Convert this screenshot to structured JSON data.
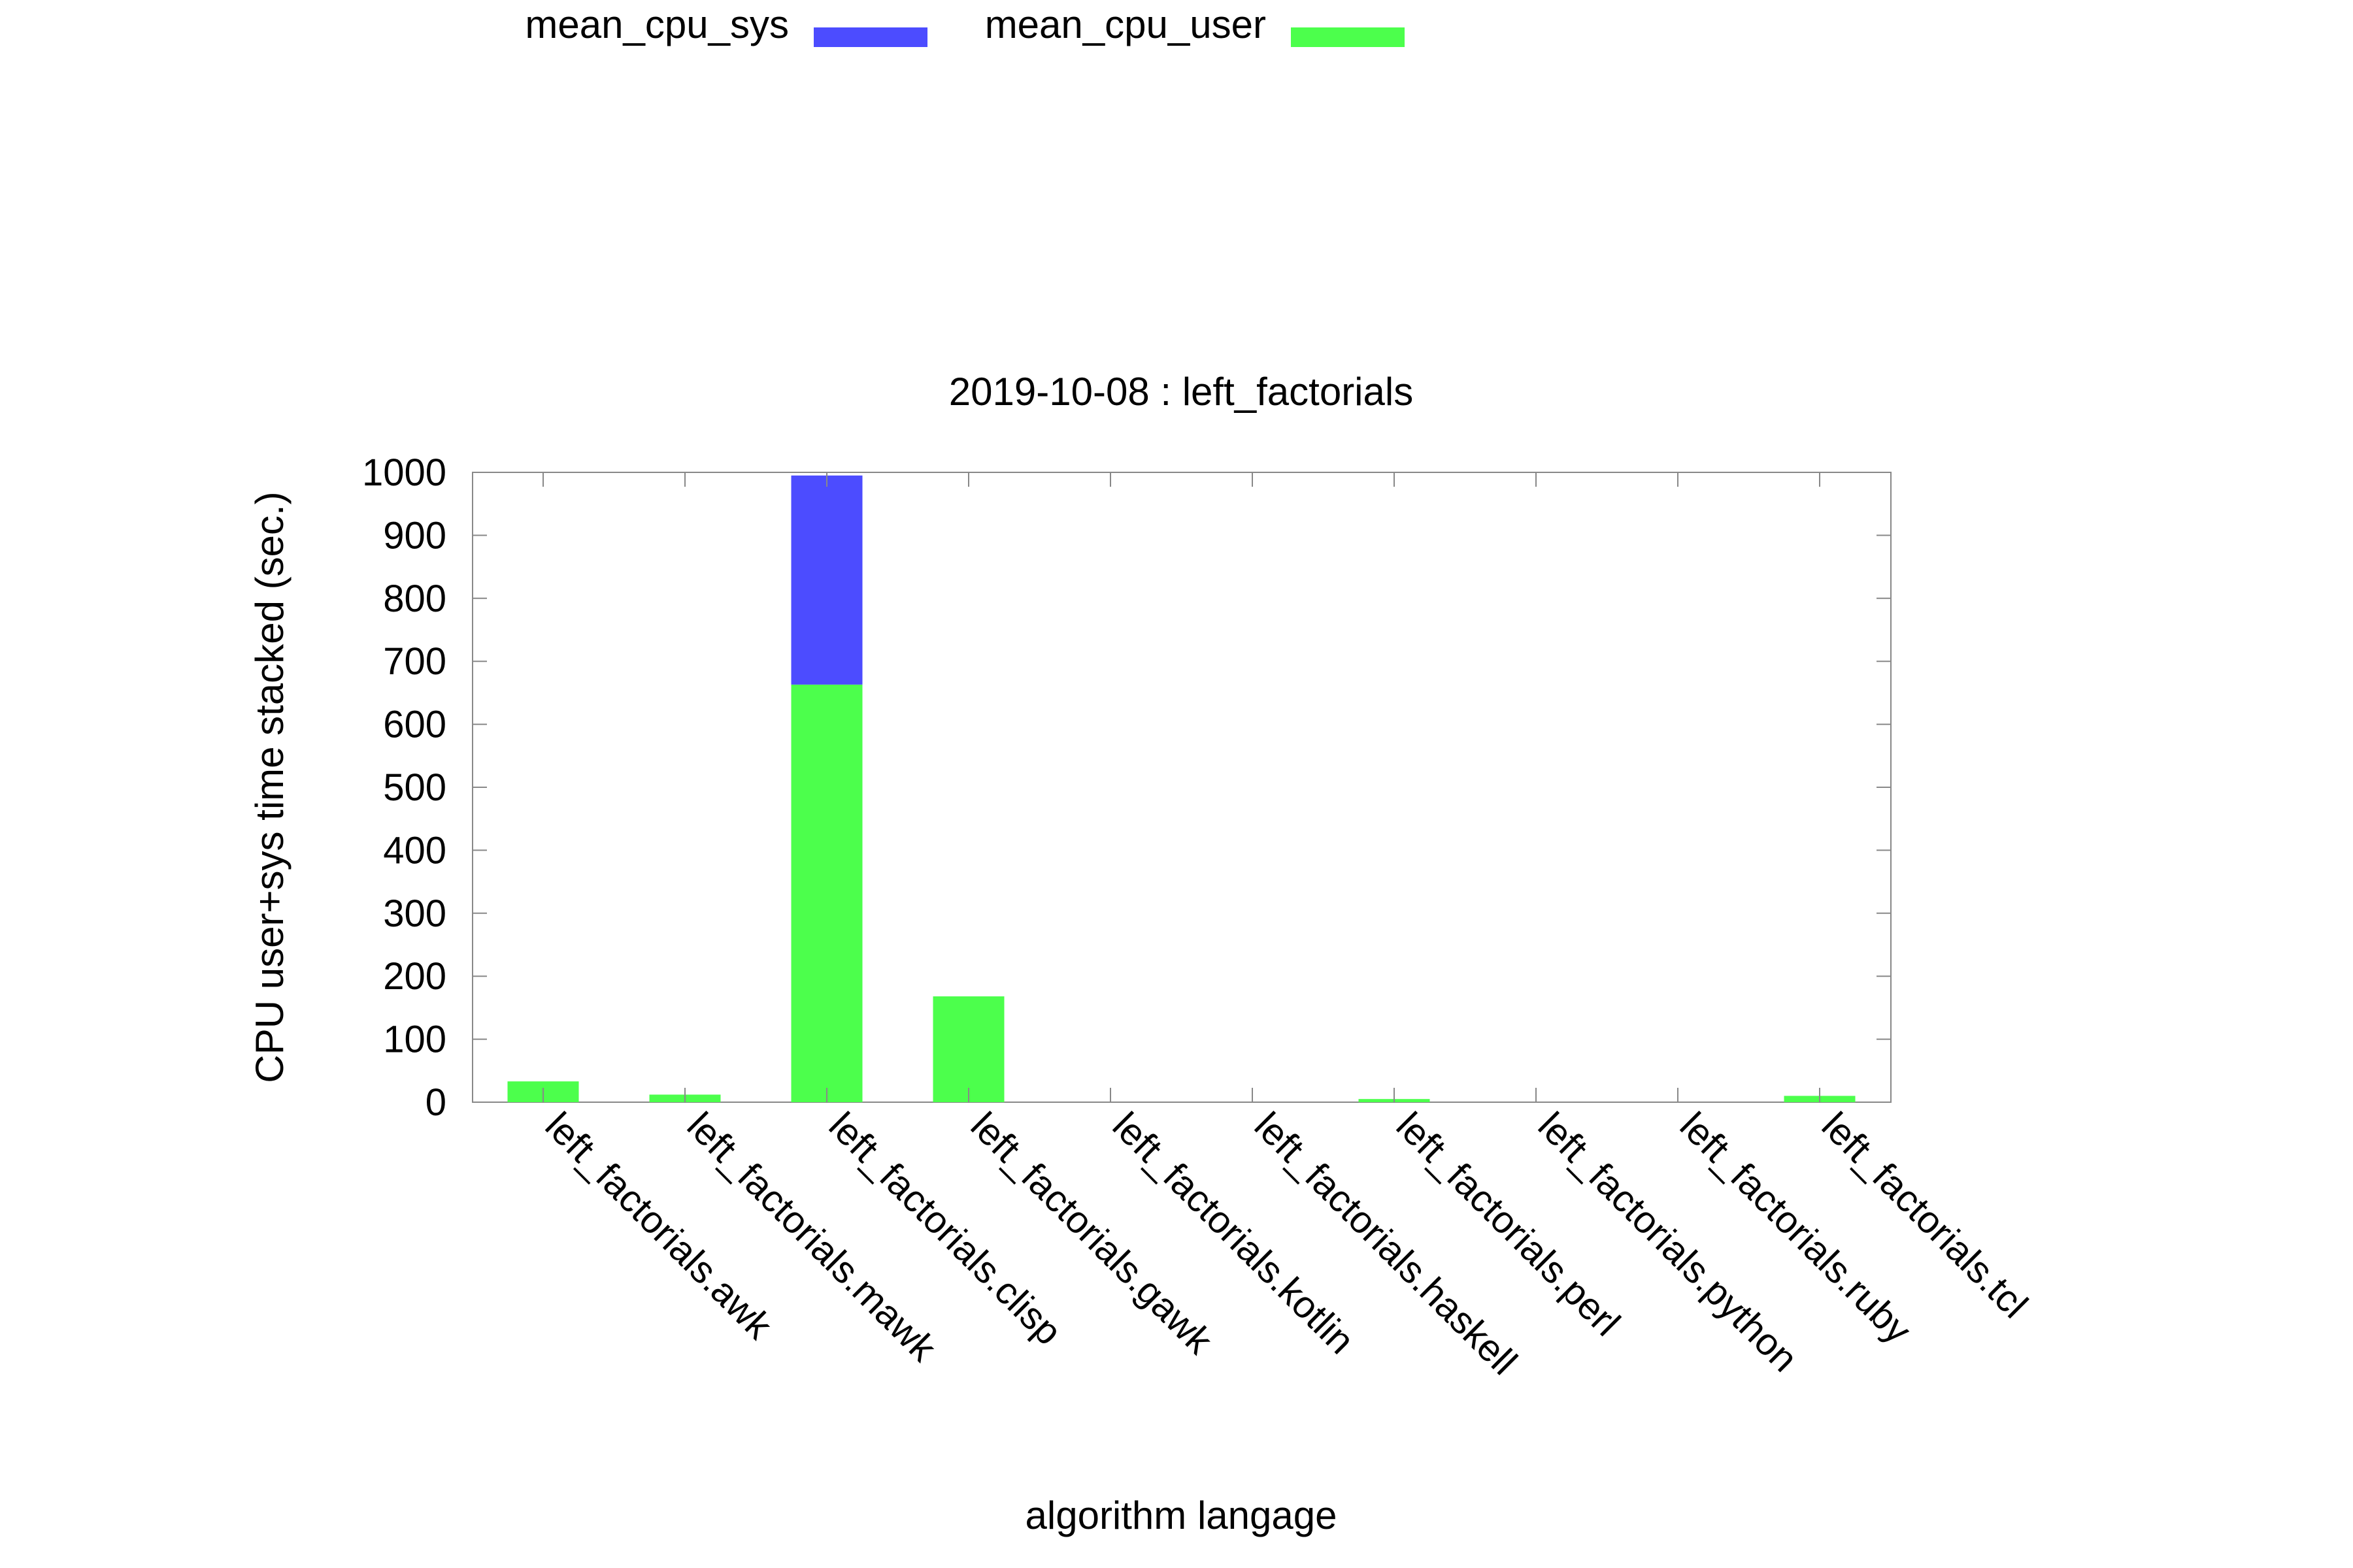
{
  "chart_data": {
    "type": "bar",
    "stacked": true,
    "title": "2019-10-08 : left_factorials",
    "xlabel": "algorithm langage",
    "ylabel": "CPU user+sys time stacked (sec.)",
    "ylim": [
      0,
      1000
    ],
    "yticks": [
      0,
      100,
      200,
      300,
      400,
      500,
      600,
      700,
      800,
      900,
      1000
    ],
    "categories": [
      "left_factorials.awk",
      "left_factorials.mawk",
      "left_factorials.clisp",
      "left_factorials.gawk",
      "left_factorials.kotlin",
      "left_factorials.haskell",
      "left_factorials.perl",
      "left_factorials.python",
      "left_factorials.ruby",
      "left_factorials.tcl"
    ],
    "series": [
      {
        "name": "mean_cpu_user",
        "color": "#4cff4c",
        "values": [
          33,
          12,
          663,
          168,
          0,
          0,
          5,
          0,
          0,
          10
        ]
      },
      {
        "name": "mean_cpu_sys",
        "color": "#4c4cff",
        "values": [
          0,
          0,
          332,
          0,
          0,
          0,
          0,
          0,
          0,
          0
        ]
      }
    ],
    "legend": {
      "placement": "top-left",
      "order": [
        "mean_cpu_sys",
        "mean_cpu_user"
      ]
    },
    "grid": false
  }
}
